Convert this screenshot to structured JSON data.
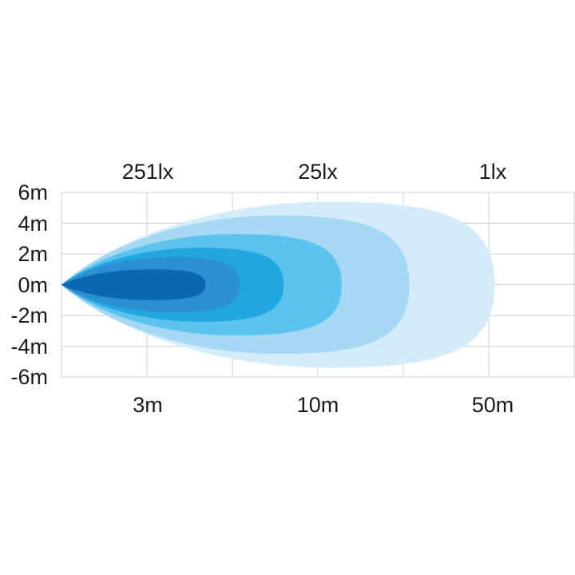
{
  "chart_data": {
    "type": "area",
    "title": "",
    "xlabel": "",
    "ylabel": "",
    "y_ticks": [
      "6m",
      "4m",
      "2m",
      "0m",
      "-2m",
      "-4m",
      "-6m"
    ],
    "y_values": [
      6,
      4,
      2,
      0,
      -2,
      -4,
      -6
    ],
    "ylim": [
      -6,
      6
    ],
    "x_ticks": [
      "3m",
      "10m",
      "50m"
    ],
    "x_tick_values": [
      3,
      10,
      50
    ],
    "lux_labels": [
      "251lx",
      "25lx",
      "1lx"
    ],
    "grid": true,
    "contours": [
      {
        "reach_m": 51.4,
        "half_width_m": 5.4,
        "color": "#d4ecf9"
      },
      {
        "reach_m": 31.4,
        "half_width_m": 4.5,
        "color": "#a5d8f3"
      },
      {
        "reach_m": 15.6,
        "half_width_m": 3.3,
        "color": "#5cc3ee"
      },
      {
        "reach_m": 8.6,
        "half_width_m": 2.4,
        "color": "#22a6e0"
      },
      {
        "reach_m": 6.8,
        "half_width_m": 1.8,
        "color": "#2b8fd3"
      },
      {
        "reach_m": 5.4,
        "half_width_m": 1.0,
        "color": "#0b67b1"
      }
    ]
  }
}
